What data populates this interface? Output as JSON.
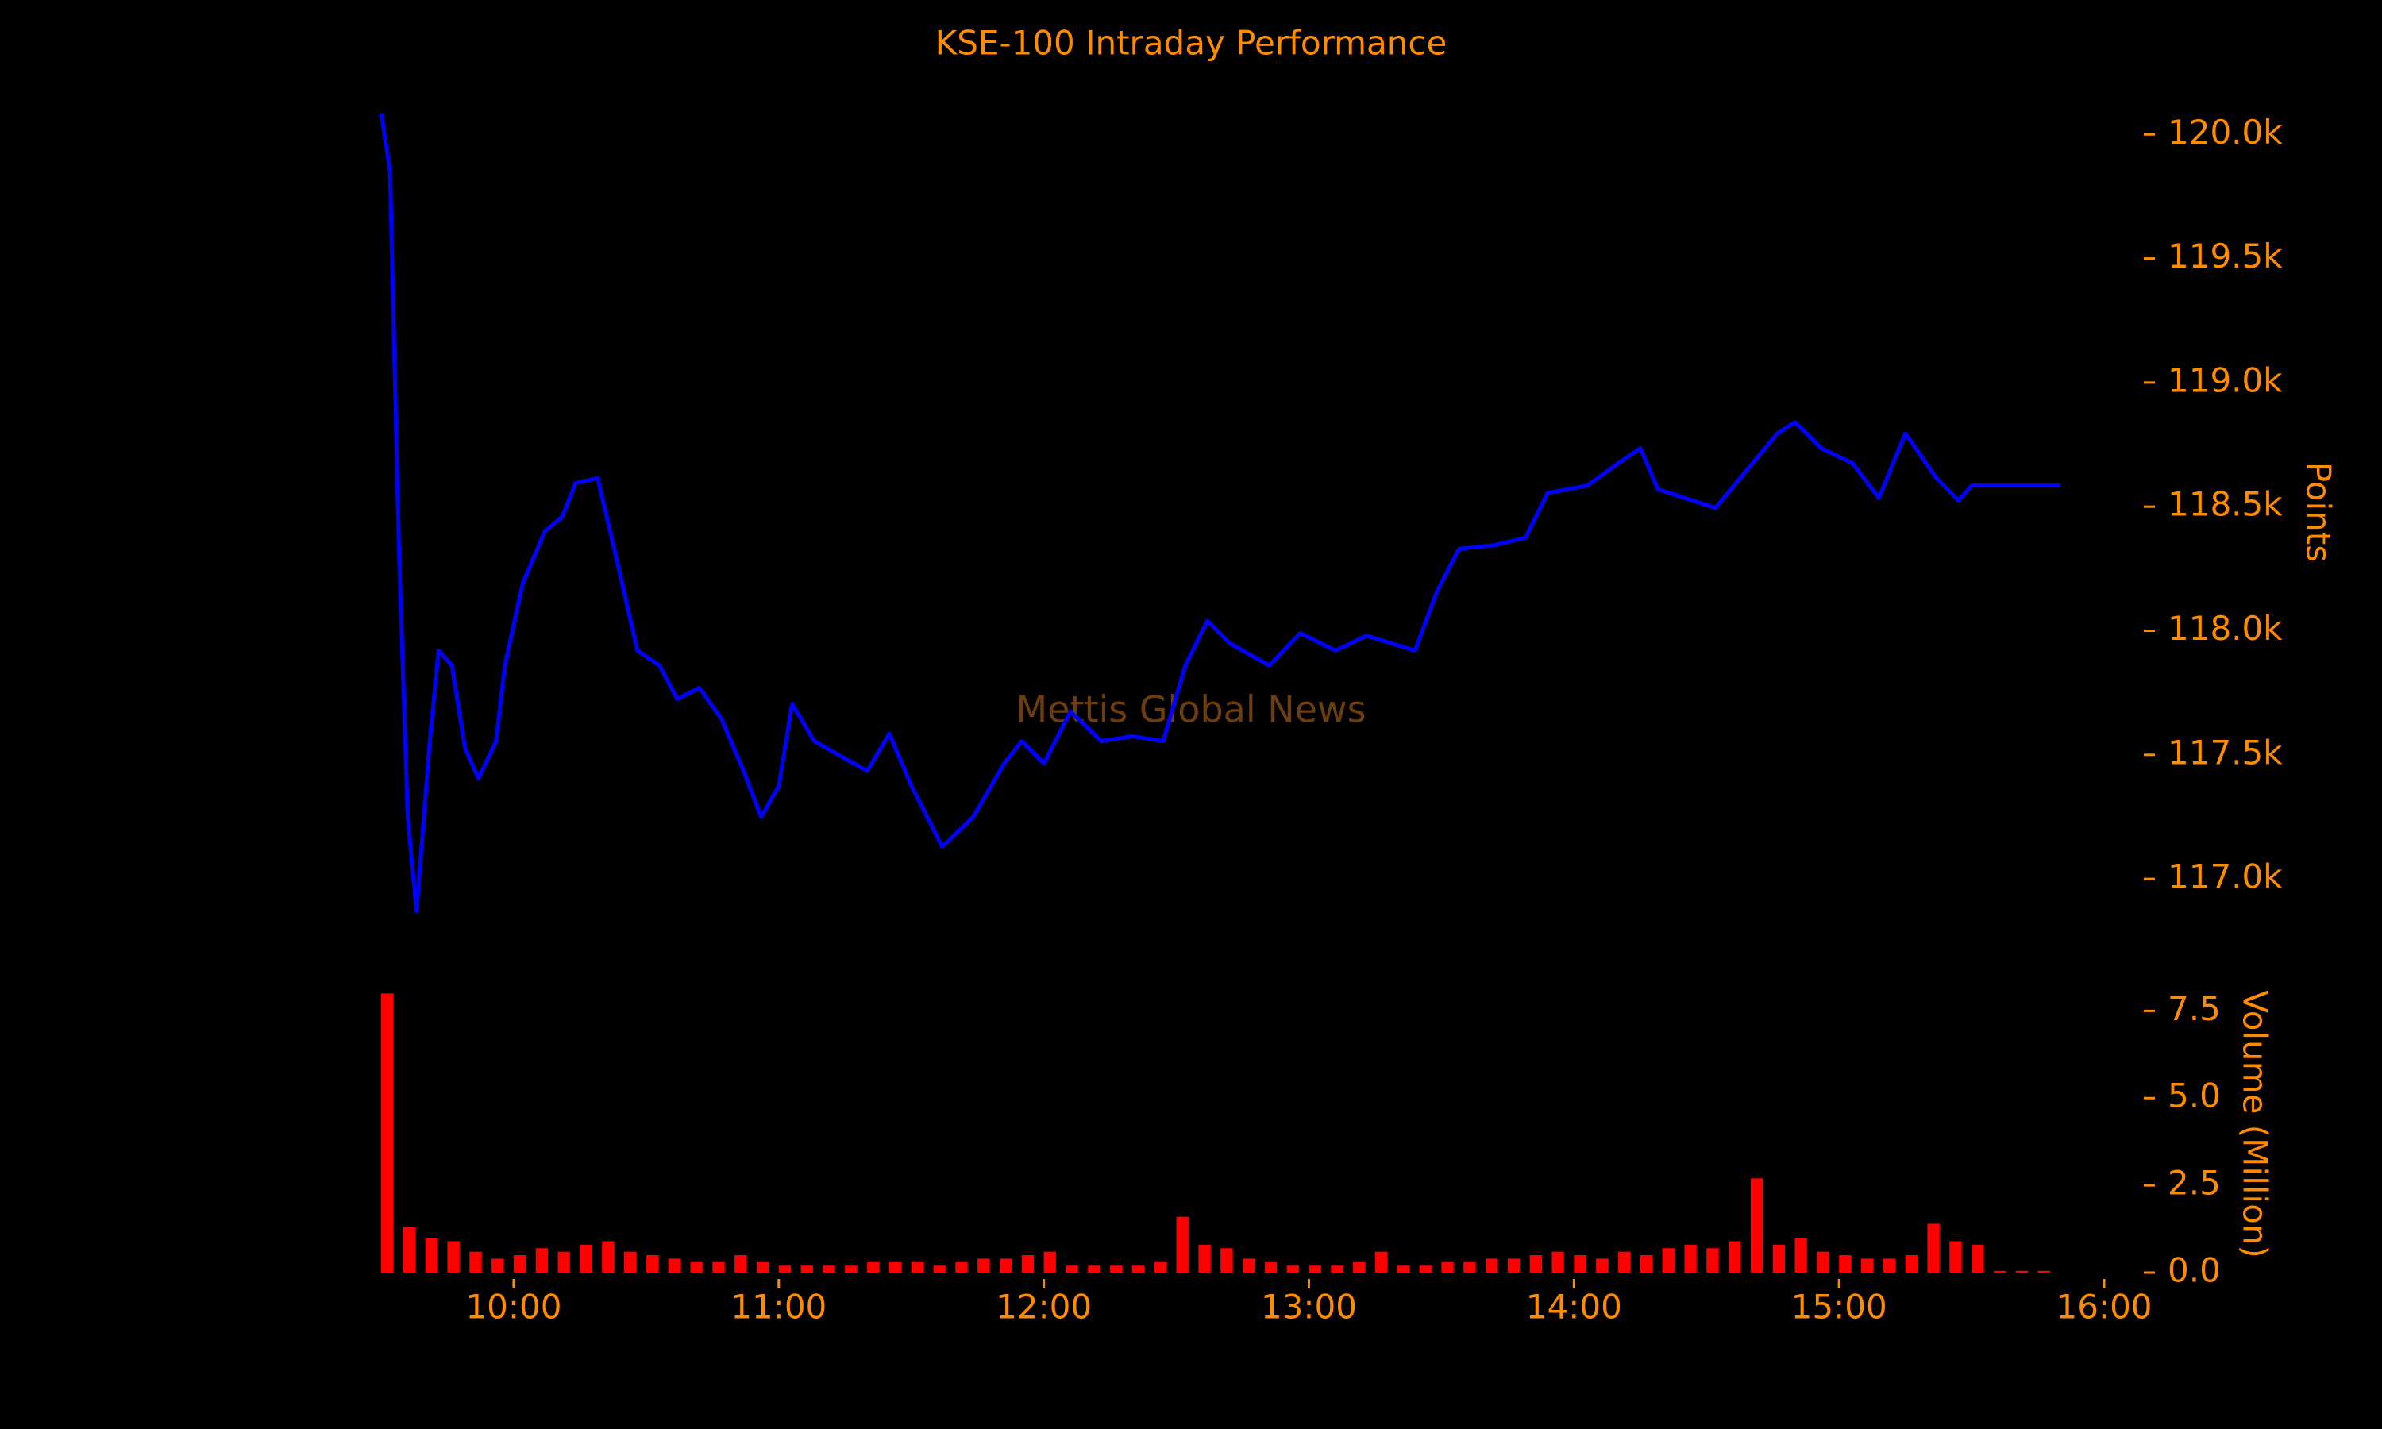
{
  "chart_data": [
    {
      "type": "line",
      "title": "KSE-100 Intraday Performance",
      "annotation": "Mettis Global News",
      "y_label": "Points",
      "color": "#0000ff",
      "x": [
        "09:30",
        "09:32",
        "09:34",
        "09:36",
        "09:38",
        "09:41",
        "09:43",
        "09:46",
        "09:49",
        "09:52",
        "09:56",
        "09:58",
        "10:02",
        "10:07",
        "10:11",
        "10:14",
        "10:19",
        "10:23",
        "10:28",
        "10:33",
        "10:37",
        "10:42",
        "10:47",
        "10:52",
        "10:56",
        "11:00",
        "11:03",
        "11:08",
        "11:14",
        "11:20",
        "11:25",
        "11:30",
        "11:37",
        "11:44",
        "11:51",
        "11:55",
        "12:00",
        "12:06",
        "12:13",
        "12:20",
        "12:27",
        "12:32",
        "12:37",
        "12:42",
        "12:51",
        "12:58",
        "13:06",
        "13:13",
        "13:24",
        "13:29",
        "13:34",
        "13:42",
        "13:49",
        "13:54",
        "14:03",
        "14:10",
        "14:15",
        "14:19",
        "14:25",
        "14:32",
        "14:39",
        "14:46",
        "14:50",
        "14:56",
        "15:03",
        "15:09",
        "15:15",
        "15:22",
        "15:27",
        "15:30",
        "15:50"
      ],
      "values": [
        120085,
        119855,
        118340,
        117250,
        116870,
        117555,
        117920,
        117860,
        117525,
        117405,
        117555,
        117860,
        118190,
        118400,
        118460,
        118595,
        118615,
        118310,
        117920,
        117860,
        117725,
        117770,
        117645,
        117435,
        117250,
        117375,
        117705,
        117555,
        117495,
        117435,
        117585,
        117375,
        117130,
        117250,
        117465,
        117555,
        117465,
        117675,
        117555,
        117575,
        117555,
        117860,
        118040,
        117950,
        117860,
        117990,
        117920,
        117980,
        117920,
        118160,
        118330,
        118345,
        118375,
        118555,
        118585,
        118675,
        118735,
        118570,
        118535,
        118495,
        118645,
        118795,
        118840,
        118735,
        118675,
        118535,
        118795,
        118615,
        118525,
        118585,
        118585
      ],
      "xlim": [
        "09:30",
        "16:00"
      ],
      "ylim": [
        116850,
        120100
      ],
      "yticks": [
        {
          "value": 117000,
          "label": "117.0k"
        },
        {
          "value": 117500,
          "label": "117.5k"
        },
        {
          "value": 118000,
          "label": "118.0k"
        },
        {
          "value": 118500,
          "label": "118.5k"
        },
        {
          "value": 119000,
          "label": "119.0k"
        },
        {
          "value": 119500,
          "label": "119.5k"
        },
        {
          "value": 120000,
          "label": "120.0k"
        }
      ]
    },
    {
      "type": "bar",
      "y_label": "Volume (Million)",
      "color": "#ff0000",
      "x": [
        "09:30",
        "09:35",
        "09:40",
        "09:45",
        "09:50",
        "09:55",
        "10:00",
        "10:05",
        "10:10",
        "10:15",
        "10:20",
        "10:25",
        "10:30",
        "10:35",
        "10:40",
        "10:45",
        "10:50",
        "10:55",
        "11:00",
        "11:05",
        "11:10",
        "11:15",
        "11:20",
        "11:25",
        "11:30",
        "11:35",
        "11:40",
        "11:45",
        "11:50",
        "11:55",
        "12:00",
        "12:05",
        "12:10",
        "12:15",
        "12:20",
        "12:25",
        "12:30",
        "12:35",
        "12:40",
        "12:45",
        "12:50",
        "12:55",
        "13:00",
        "13:05",
        "13:10",
        "13:15",
        "13:20",
        "13:25",
        "13:30",
        "13:35",
        "13:40",
        "13:45",
        "13:50",
        "13:55",
        "14:00",
        "14:05",
        "14:10",
        "14:15",
        "14:20",
        "14:25",
        "14:30",
        "14:35",
        "14:40",
        "14:45",
        "14:50",
        "14:55",
        "15:00",
        "15:05",
        "15:10",
        "15:15",
        "15:20",
        "15:25",
        "15:30",
        "15:35",
        "15:40",
        "15:45"
      ],
      "values": [
        8.0,
        1.3,
        1.0,
        0.9,
        0.6,
        0.4,
        0.5,
        0.7,
        0.6,
        0.8,
        0.9,
        0.6,
        0.5,
        0.4,
        0.3,
        0.3,
        0.5,
        0.3,
        0.2,
        0.2,
        0.2,
        0.2,
        0.3,
        0.3,
        0.3,
        0.2,
        0.3,
        0.4,
        0.4,
        0.5,
        0.6,
        0.2,
        0.2,
        0.2,
        0.2,
        0.3,
        1.6,
        0.8,
        0.7,
        0.4,
        0.3,
        0.2,
        0.2,
        0.2,
        0.3,
        0.6,
        0.2,
        0.2,
        0.3,
        0.3,
        0.4,
        0.4,
        0.5,
        0.6,
        0.5,
        0.4,
        0.6,
        0.5,
        0.7,
        0.8,
        0.7,
        0.9,
        2.7,
        0.8,
        1.0,
        0.6,
        0.5,
        0.4,
        0.4,
        0.5,
        1.4,
        0.9,
        0.8,
        0.05,
        0.05,
        0.05
      ],
      "xlim": [
        "09:30",
        "16:00"
      ],
      "ylim": [
        0,
        8.1
      ],
      "xticks": [
        "10:00",
        "11:00",
        "12:00",
        "13:00",
        "14:00",
        "15:00",
        "16:00"
      ],
      "yticks": [
        {
          "value": 0,
          "label": "0.0"
        },
        2.5,
        {
          "value": 5,
          "label": "5.0"
        },
        7.5
      ]
    }
  ]
}
